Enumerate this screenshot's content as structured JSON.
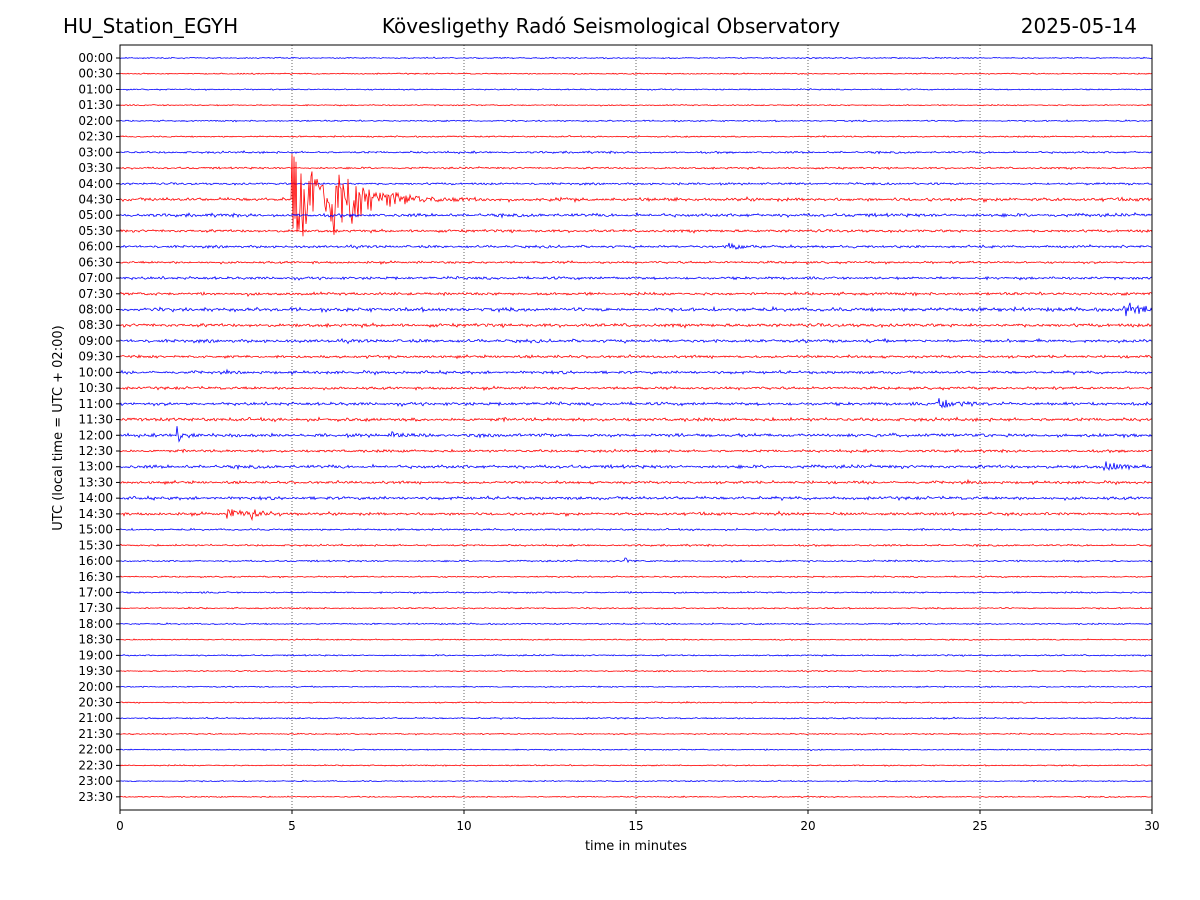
{
  "header": {
    "left": "HU_Station_EGYH",
    "center": "Kövesligethy Radó Seismological Observatory",
    "right": "2025-05-14"
  },
  "chart_data": {
    "type": "line",
    "xlabel": "time in minutes",
    "ylabel": "UTC (local time = UTC + 02:00)",
    "xlim": [
      0,
      30
    ],
    "xticks": [
      0,
      5,
      10,
      15,
      20,
      25,
      30
    ],
    "vgrid": [
      5,
      10,
      15,
      20,
      25
    ],
    "grid": "dotted vertical",
    "trace_colors": [
      "#0000ff",
      "#ff0000"
    ],
    "rows": [
      "00:00",
      "00:30",
      "01:00",
      "01:30",
      "02:00",
      "02:30",
      "03:00",
      "03:30",
      "04:00",
      "04:30",
      "05:00",
      "05:30",
      "06:00",
      "06:30",
      "07:00",
      "07:30",
      "08:00",
      "08:30",
      "09:00",
      "09:30",
      "10:00",
      "10:30",
      "11:00",
      "11:30",
      "12:00",
      "12:30",
      "13:00",
      "13:30",
      "14:00",
      "14:30",
      "15:00",
      "15:30",
      "16:00",
      "16:30",
      "17:00",
      "17:30",
      "18:00",
      "18:30",
      "19:00",
      "19:30",
      "20:00",
      "20:30",
      "21:00",
      "21:30",
      "22:00",
      "22:30",
      "23:00",
      "23:30"
    ],
    "noise_levels": [
      0.6,
      0.6,
      0.6,
      0.6,
      0.7,
      0.7,
      1.0,
      0.9,
      1.0,
      1.6,
      1.6,
      1.3,
      1.2,
      1.1,
      1.3,
      1.4,
      1.8,
      1.6,
      1.5,
      1.3,
      1.4,
      1.3,
      1.5,
      1.6,
      1.6,
      1.3,
      1.6,
      1.3,
      1.5,
      1.4,
      0.9,
      0.9,
      0.8,
      0.7,
      0.8,
      0.7,
      0.7,
      0.6,
      0.7,
      0.6,
      0.6,
      0.6,
      0.7,
      0.6,
      0.6,
      0.6,
      0.6,
      0.6
    ],
    "events": [
      {
        "row": "04:30",
        "minute": 5.0,
        "amp": 55,
        "decay": 0.9
      },
      {
        "row": "04:30",
        "minute": 6.15,
        "amp": 38,
        "decay": 1.0
      },
      {
        "row": "08:00",
        "minute": 29.2,
        "amp": 9,
        "decay": 0.5
      },
      {
        "row": "11:00",
        "minute": 23.8,
        "amp": 6,
        "decay": 0.8
      },
      {
        "row": "12:00",
        "minute": 1.65,
        "amp": 9,
        "decay": 0.3
      },
      {
        "row": "12:00",
        "minute": 7.8,
        "amp": 6,
        "decay": 0.3
      },
      {
        "row": "13:00",
        "minute": 28.6,
        "amp": 6,
        "decay": 0.6
      },
      {
        "row": "14:30",
        "minute": 3.1,
        "amp": 5,
        "decay": 0.6
      },
      {
        "row": "14:30",
        "minute": 3.8,
        "amp": 5,
        "decay": 0.5
      },
      {
        "row": "06:00",
        "minute": 17.7,
        "amp": 5,
        "decay": 0.4
      },
      {
        "row": "16:00",
        "minute": 14.7,
        "amp": 5,
        "decay": 0.1
      },
      {
        "row": "04:00",
        "minute": 16.25,
        "amp": 4,
        "decay": 0.05
      }
    ]
  }
}
